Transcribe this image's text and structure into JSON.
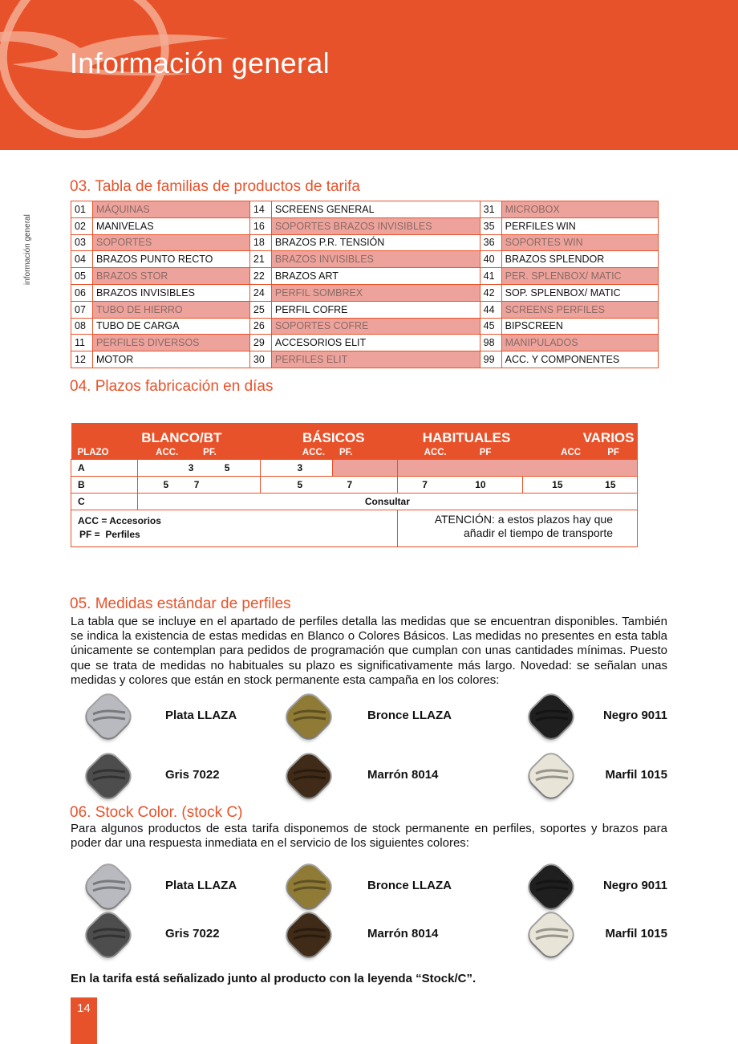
{
  "header": {
    "title": "Información general"
  },
  "side_label": "información general",
  "section03": {
    "title": "03. Tabla de familias de productos de tarifa",
    "columns": [
      [
        {
          "code": "01",
          "name": "MÁQUINAS",
          "highlight": true
        },
        {
          "code": "02",
          "name": "MANIVELAS",
          "highlight": false
        },
        {
          "code": "03",
          "name": "SOPORTES",
          "highlight": true
        },
        {
          "code": "04",
          "name": "BRAZOS PUNTO RECTO",
          "highlight": false
        },
        {
          "code": "05",
          "name": "BRAZOS STOR",
          "highlight": true
        },
        {
          "code": "06",
          "name": "BRAZOS INVISIBLES",
          "highlight": false
        },
        {
          "code": "07",
          "name": "TUBO DE HIERRO",
          "highlight": true
        },
        {
          "code": "08",
          "name": "TUBO DE CARGA",
          "highlight": false
        },
        {
          "code": "11",
          "name": "PERFILES DIVERSOS",
          "highlight": true
        },
        {
          "code": "12",
          "name": "MOTOR",
          "highlight": false
        }
      ],
      [
        {
          "code": "14",
          "name": "SCREENS GENERAL",
          "highlight": false
        },
        {
          "code": "16",
          "name": "SOPORTES BRAZOS INVISIBLES",
          "highlight": true
        },
        {
          "code": "18",
          "name": "BRAZOS P.R. TENSIÓN",
          "highlight": false
        },
        {
          "code": "21",
          "name": "BRAZOS INVISIBLES",
          "highlight": true
        },
        {
          "code": "22",
          "name": "BRAZOS ART",
          "highlight": false
        },
        {
          "code": "24",
          "name": "PERFIL SOMBREX",
          "highlight": true
        },
        {
          "code": "25",
          "name": "PERFIL COFRE",
          "highlight": false
        },
        {
          "code": "26",
          "name": "SOPORTES COFRE",
          "highlight": true
        },
        {
          "code": "29",
          "name": "ACCESORIOS ELIT",
          "highlight": false
        },
        {
          "code": "30",
          "name": "PERFILES ELIT",
          "highlight": true
        }
      ],
      [
        {
          "code": "31",
          "name": "MICROBOX",
          "highlight": true
        },
        {
          "code": "35",
          "name": "PERFILES WIN",
          "highlight": false
        },
        {
          "code": "36",
          "name": "SOPORTES WIN",
          "highlight": true
        },
        {
          "code": "40",
          "name": "BRAZOS SPLENDOR",
          "highlight": false
        },
        {
          "code": "41",
          "name": "PER. SPLENBOX/ MATIC",
          "highlight": true
        },
        {
          "code": "42",
          "name": "SOP. SPLENBOX/ MATIC",
          "highlight": false
        },
        {
          "code": "44",
          "name": "SCREENS PERFILES",
          "highlight": true
        },
        {
          "code": "45",
          "name": "BIPSCREEN",
          "highlight": false
        },
        {
          "code": "98",
          "name": "MANIPULADOS",
          "highlight": true
        },
        {
          "code": "99",
          "name": "ACC. Y COMPONENTES",
          "highlight": false
        }
      ]
    ]
  },
  "section04": {
    "title": "04. Plazos fabricación en días",
    "groups": [
      "BLANCO/BT",
      "BÁSICOS",
      "HABITUALES",
      "VARIOS"
    ],
    "subheaders": [
      "PLAZO",
      "ACC.",
      "PF.",
      "ACC.",
      "PF.",
      "ACC.",
      "PF",
      "ACC",
      "PF"
    ],
    "rows": {
      "A": {
        "label": "A",
        "values": [
          "3",
          "5",
          "3"
        ]
      },
      "B": {
        "label": "B",
        "values": [
          "5",
          "7",
          "5",
          "7",
          "7",
          "10",
          "15",
          "15"
        ]
      },
      "C": {
        "label": "C",
        "value": "Consultar"
      }
    },
    "legend": [
      "ACC = Accesorios",
      "PF =  Perfiles"
    ],
    "note": [
      "ATENCIÓN: a estos plazos hay que",
      "añadir el tiempo de transporte"
    ]
  },
  "section05": {
    "title": "05. Medidas estándar de perfiles",
    "text": "La tabla que se incluye en el apartado de perfiles detalla las medidas que se encuentran disponibles. También se indica la existencia de estas medidas en Blanco o Colores Básicos. Las medidas no presentes en esta tabla únicamente se contemplan para pedidos de programación que cumplan con unas cantidades mínimas. Puesto que se trata de medidas no habituales su plazo es significativamente más largo. Novedad: se señalan unas medidas y colores que están en stock permanente esta campaña en los colores:",
    "colors": [
      {
        "name": "Plata LLAZA",
        "hex": "#b9babf"
      },
      {
        "name": "Bronce LLAZA",
        "hex": "#8f7b35"
      },
      {
        "name": "Negro 9011",
        "hex": "#1f1f1f"
      },
      {
        "name": "Gris 7022",
        "hex": "#4e4d4d"
      },
      {
        "name": "Marrón 8014",
        "hex": "#3f2b17"
      },
      {
        "name": "Marfil 1015",
        "hex": "#e8e5d8"
      }
    ]
  },
  "section06": {
    "title": "06. Stock Color. (stock C)",
    "text": "Para algunos productos de esta tarifa disponemos de stock permanente en perfiles, soportes y brazos para poder dar una respuesta inmediata en el servicio de los siguientes colores:",
    "colors": [
      {
        "name": "Plata LLAZA",
        "hex": "#b9babf"
      },
      {
        "name": "Bronce LLAZA",
        "hex": "#8f7b35"
      },
      {
        "name": "Negro 9011",
        "hex": "#1f1f1f"
      },
      {
        "name": "Gris 7022",
        "hex": "#4e4d4d"
      },
      {
        "name": "Marrón 8014",
        "hex": "#3f2b17"
      },
      {
        "name": "Marfil 1015",
        "hex": "#e8e5d8"
      }
    ],
    "footnote": "En la tarifa está señalizado junto al producto con la leyenda “Stock/C”."
  },
  "page_number": "14",
  "colors": {
    "accent": "#e8522a",
    "highlight": "#eda39b"
  }
}
